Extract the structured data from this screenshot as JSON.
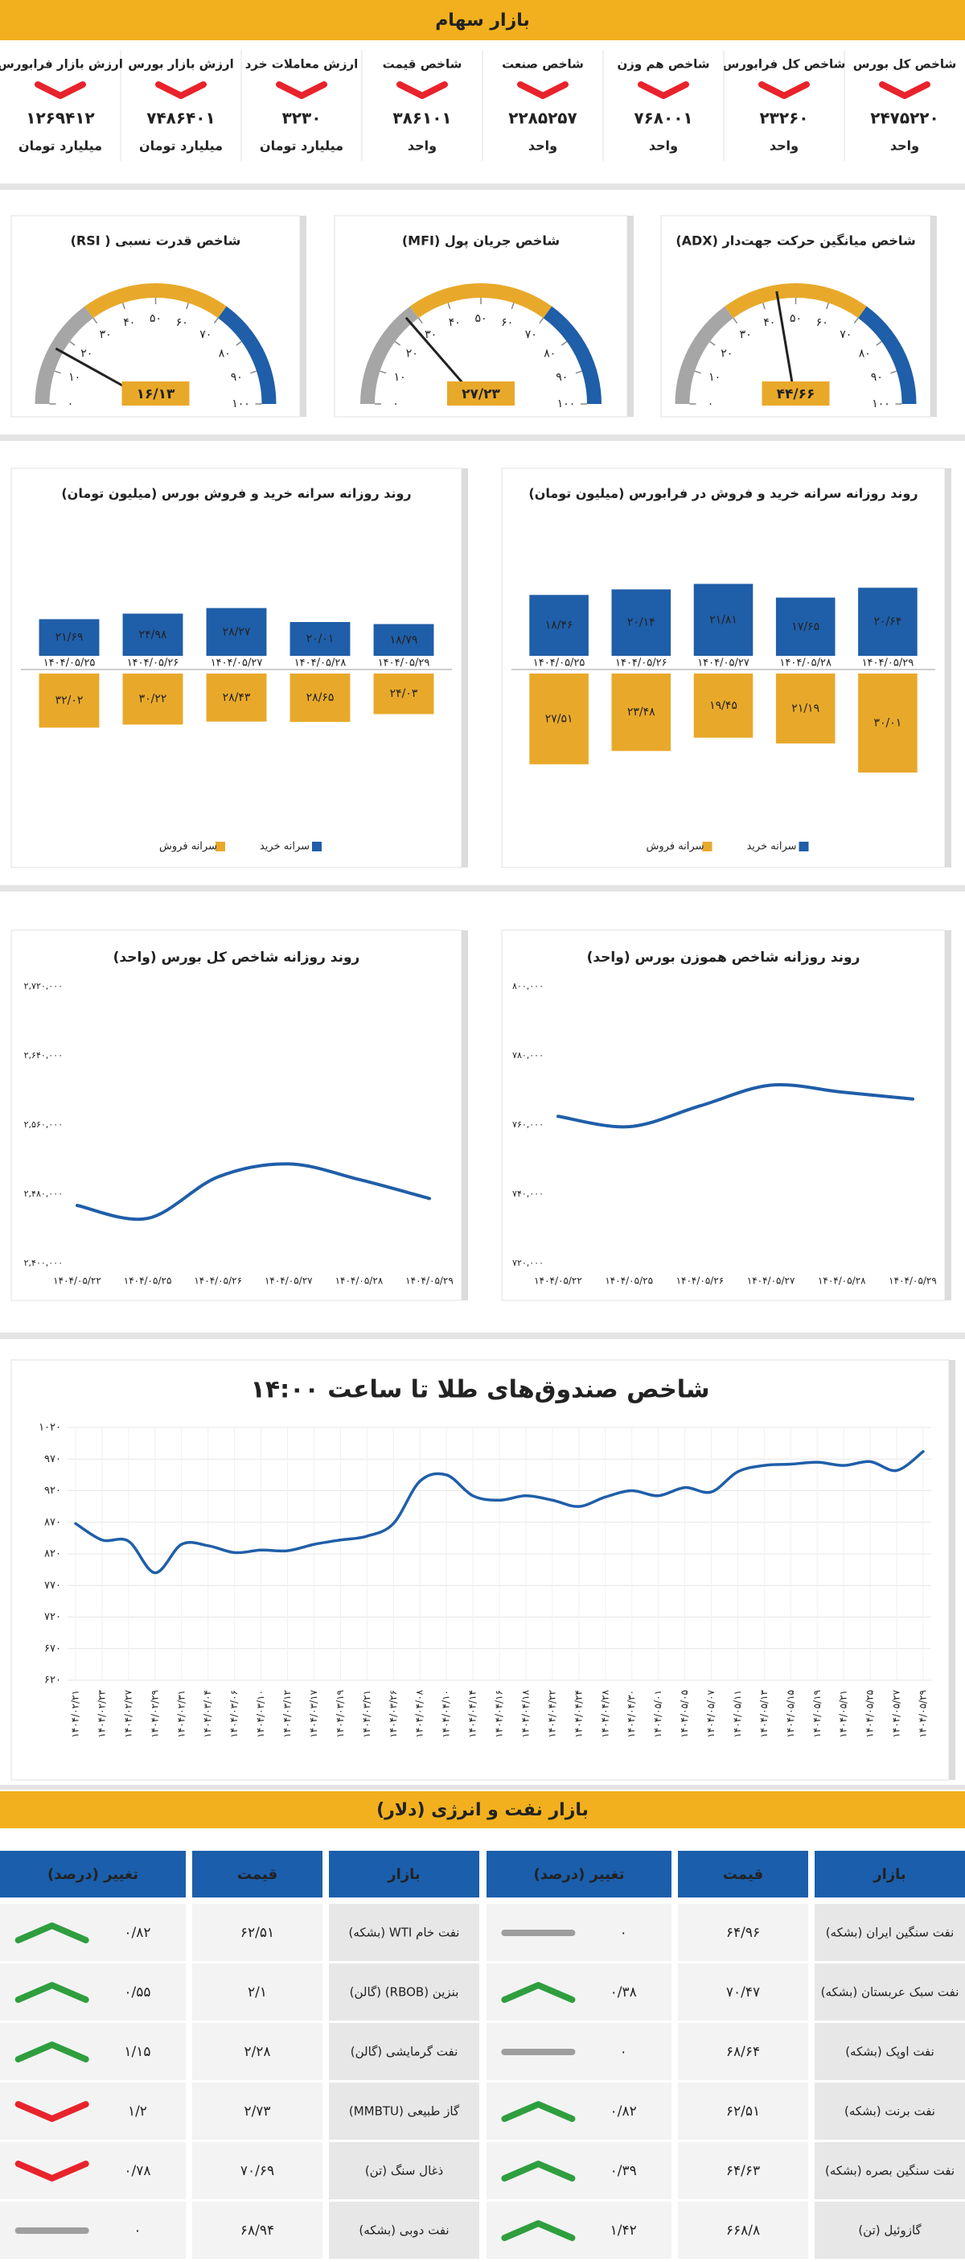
{
  "header": {
    "title": "بازار سهام"
  },
  "trend_colors": {
    "up": "#2e9e3e",
    "down": "#e8232b",
    "flat": "#9e9e9e"
  },
  "indicators": [
    {
      "label": "شاخص کل بورس",
      "value": "۲۴۷۵۲۲۰",
      "unit": "واحد",
      "direction": "down"
    },
    {
      "label": "شاخص کل فرابورس",
      "value": "۲۳۲۶۰",
      "unit": "واحد",
      "direction": "down"
    },
    {
      "label": "شاخص هم وزن",
      "value": "۷۶۸۰۰۱",
      "unit": "واحد",
      "direction": "down"
    },
    {
      "label": "شاخص صنعت",
      "value": "۲۲۸۵۲۵۷",
      "unit": "واحد",
      "direction": "down"
    },
    {
      "label": "شاخص قیمت",
      "value": "۳۸۶۱۰۱",
      "unit": "واحد",
      "direction": "down"
    },
    {
      "label": "ارزش معاملات خرد",
      "value": "۳۲۳۰",
      "unit": "میلیارد تومان",
      "direction": "down"
    },
    {
      "label": "ارزش بازار بورس",
      "value": "۷۴۸۶۴۰۱",
      "unit": "میلیارد تومان",
      "direction": "down"
    },
    {
      "label": "ارزش بازار فرابورس",
      "value": "۱۲۶۹۴۱۲",
      "unit": "میلیارد تومان",
      "direction": "down"
    }
  ],
  "chart_data": [
    {
      "type": "gauge",
      "title": "شاخص میانگین حرکت جهت‌دار (ADX)",
      "values": [
        44.66
      ],
      "value_labels": [
        "۴۴/۶۶"
      ],
      "ylim": [
        0,
        100
      ],
      "yticks": [
        {
          "value": 0,
          "label": "۰"
        },
        {
          "value": 10,
          "label": "۱۰"
        },
        {
          "value": 20,
          "label": "۲۰"
        },
        {
          "value": 30,
          "label": "۳۰"
        },
        {
          "value": 40,
          "label": "۴۰"
        },
        {
          "value": 50,
          "label": "۵۰"
        },
        {
          "value": 60,
          "label": "۶۰"
        },
        {
          "value": 70,
          "label": "۷۰"
        },
        {
          "value": 80,
          "label": "۸۰"
        },
        {
          "value": 90,
          "label": "۹۰"
        },
        {
          "value": 100,
          "label": "۱۰۰"
        }
      ],
      "bands": [
        {
          "from": 0,
          "to": 30,
          "color": "#a6a6a6"
        },
        {
          "from": 30,
          "to": 70,
          "color": "#e8a92a"
        },
        {
          "from": 70,
          "to": 100,
          "color": "#1f5ea8"
        }
      ],
      "color": "#222222"
    },
    {
      "type": "gauge",
      "title": "شاخص جریان پول (MFI)",
      "values": [
        27.23
      ],
      "value_labels": [
        "۲۷/۲۳"
      ],
      "ylim": [
        0,
        100
      ],
      "yticks": [
        {
          "value": 0,
          "label": "۰"
        },
        {
          "value": 10,
          "label": "۱۰"
        },
        {
          "value": 20,
          "label": "۲۰"
        },
        {
          "value": 30,
          "label": "۳۰"
        },
        {
          "value": 40,
          "label": "۴۰"
        },
        {
          "value": 50,
          "label": "۵۰"
        },
        {
          "value": 60,
          "label": "۶۰"
        },
        {
          "value": 70,
          "label": "۷۰"
        },
        {
          "value": 80,
          "label": "۸۰"
        },
        {
          "value": 90,
          "label": "۹۰"
        },
        {
          "value": 100,
          "label": "۱۰۰"
        }
      ],
      "bands": [
        {
          "from": 0,
          "to": 30,
          "color": "#a6a6a6"
        },
        {
          "from": 30,
          "to": 70,
          "color": "#e8a92a"
        },
        {
          "from": 70,
          "to": 100,
          "color": "#1f5ea8"
        }
      ],
      "color": "#222222"
    },
    {
      "type": "gauge",
      "title": "شاخص قدرت نسبی ( RSI)",
      "values": [
        16.13
      ],
      "value_labels": [
        "۱۶/۱۳"
      ],
      "ylim": [
        0,
        100
      ],
      "yticks": [
        {
          "value": 0,
          "label": "۰"
        },
        {
          "value": 10,
          "label": "۱۰"
        },
        {
          "value": 20,
          "label": "۲۰"
        },
        {
          "value": 30,
          "label": "۳۰"
        },
        {
          "value": 40,
          "label": "۴۰"
        },
        {
          "value": 50,
          "label": "۵۰"
        },
        {
          "value": 60,
          "label": "۶۰"
        },
        {
          "value": 70,
          "label": "۷۰"
        },
        {
          "value": 80,
          "label": "۸۰"
        },
        {
          "value": 90,
          "label": "۹۰"
        },
        {
          "value": 100,
          "label": "۱۰۰"
        }
      ],
      "bands": [
        {
          "from": 0,
          "to": 30,
          "color": "#a6a6a6"
        },
        {
          "from": 30,
          "to": 70,
          "color": "#e8a92a"
        },
        {
          "from": 70,
          "to": 100,
          "color": "#1f5ea8"
        }
      ],
      "color": "#222222"
    },
    {
      "type": "diverging_bar",
      "title": "روند روزانه سرانه خرید و فروش بورس (میلیون تومان)",
      "categories": [
        "۱۴۰۴/۰۵/۲۵",
        "۱۴۰۴/۰۵/۲۶",
        "۱۴۰۴/۰۵/۲۷",
        "۱۴۰۴/۰۵/۲۸",
        "۱۴۰۴/۰۵/۲۹"
      ],
      "series": [
        {
          "name": "سرانه خرید",
          "color": "#1f5ea8",
          "values": [
            21.69,
            24.98,
            28.27,
            20.01,
            18.79
          ],
          "value_labels": [
            "۲۱/۶۹",
            "۲۴/۹۸",
            "۲۸/۲۷",
            "۲۰/۰۱",
            "۱۸/۷۹"
          ]
        },
        {
          "name": "سرانه فروش",
          "color": "#e8a92a",
          "values": [
            32.02,
            30.22,
            28.43,
            28.65,
            24.03
          ],
          "value_labels": [
            "۳۲/۰۲",
            "۳۰/۲۲",
            "۲۸/۴۳",
            "۲۸/۶۵",
            "۲۴/۰۳"
          ]
        }
      ]
    },
    {
      "type": "diverging_bar",
      "title": "روند روزانه سرانه خرید و فروش در فرابورس (میلیون تومان)",
      "categories": [
        "۱۴۰۴/۰۵/۲۵",
        "۱۴۰۴/۰۵/۲۶",
        "۱۴۰۴/۰۵/۲۷",
        "۱۴۰۴/۰۵/۲۸",
        "۱۴۰۴/۰۵/۲۹"
      ],
      "series": [
        {
          "name": "سرانه خرید",
          "color": "#1f5ea8",
          "values": [
            18.46,
            20.14,
            21.81,
            17.65,
            20.64
          ],
          "value_labels": [
            "۱۸/۴۶",
            "۲۰/۱۴",
            "۲۱/۸۱",
            "۱۷/۶۵",
            "۲۰/۶۴"
          ]
        },
        {
          "name": "سرانه فروش",
          "color": "#e8a92a",
          "values": [
            27.51,
            23.48,
            19.45,
            21.19,
            30.01
          ],
          "value_labels": [
            "۲۷/۵۱",
            "۲۳/۴۸",
            "۱۹/۴۵",
            "۲۱/۱۹",
            "۳۰/۰۱"
          ]
        }
      ]
    },
    {
      "type": "line",
      "title": "روند روزانه شاخص کل بورس (واحد)",
      "categories": [
        "۱۴۰۴/۰۵/۲۲",
        "۱۴۰۴/۰۵/۲۵",
        "۱۴۰۴/۰۵/۲۶",
        "۱۴۰۴/۰۵/۲۷",
        "۱۴۰۴/۰۵/۲۸",
        "۱۴۰۴/۰۵/۲۹"
      ],
      "values": [
        2467000,
        2452000,
        2500000,
        2515000,
        2497000,
        2475000
      ],
      "color": "#1f5ea8",
      "ylim": [
        2400000,
        2720000
      ],
      "yticks": [
        {
          "value": 2400000,
          "label": "۲,۴۰۰,۰۰۰"
        },
        {
          "value": 2480000,
          "label": "۲,۴۸۰,۰۰۰"
        },
        {
          "value": 2560000,
          "label": "۲,۵۶۰,۰۰۰"
        },
        {
          "value": 2640000,
          "label": "۲,۶۴۰,۰۰۰"
        },
        {
          "value": 2720000,
          "label": "۲,۷۲۰,۰۰۰"
        }
      ],
      "grid": false
    },
    {
      "type": "line",
      "title": "روند روزانه شاخص هموزن بورس (واحد)",
      "categories": [
        "۱۴۰۴/۰۵/۲۲",
        "۱۴۰۴/۰۵/۲۵",
        "۱۴۰۴/۰۵/۲۶",
        "۱۴۰۴/۰۵/۲۷",
        "۱۴۰۴/۰۵/۲۸",
        "۱۴۰۴/۰۵/۲۹"
      ],
      "values": [
        762500,
        759500,
        765500,
        771500,
        769500,
        767500
      ],
      "color": "#1f5ea8",
      "ylim": [
        720000,
        800000
      ],
      "yticks": [
        {
          "value": 720000,
          "label": "۷۲۰,۰۰۰"
        },
        {
          "value": 740000,
          "label": "۷۴۰,۰۰۰"
        },
        {
          "value": 760000,
          "label": "۷۶۰,۰۰۰"
        },
        {
          "value": 780000,
          "label": "۷۸۰,۰۰۰"
        },
        {
          "value": 800000,
          "label": "۸۰۰,۰۰۰"
        }
      ],
      "grid": false
    },
    {
      "type": "line",
      "title": "شاخص صندوق‌های طلا تا ساعت ۱۴:۰۰",
      "categories": [
        "۱۴۰۴/۰۲/۲۱",
        "۱۴۰۴/۰۲/۲۳",
        "۱۴۰۴/۰۲/۲۷",
        "۱۴۰۴/۰۲/۲۹",
        "۱۴۰۴/۰۲/۳۱",
        "۱۴۰۴/۰۳/۰۴",
        "۱۴۰۴/۰۳/۰۶",
        "۱۴۰۴/۰۳/۱۰",
        "۱۴۰۴/۰۳/۱۲",
        "۱۴۰۴/۰۳/۱۷",
        "۱۴۰۴/۰۳/۱۹",
        "۱۴۰۴/۰۳/۲۱",
        "۱۴۰۴/۰۳/۲۶",
        "۱۴۰۴/۰۴/۰۸",
        "۱۴۰۴/۰۴/۱۰",
        "۱۴۰۴/۰۴/۱۴",
        "۱۴۰۴/۰۴/۱۶",
        "۱۴۰۴/۰۴/۱۸",
        "۱۴۰۴/۰۴/۲۲",
        "۱۴۰۴/۰۴/۲۴",
        "۱۴۰۴/۰۴/۲۸",
        "۱۴۰۴/۰۴/۳۰",
        "۱۴۰۴/۰۵/۰۱",
        "۱۴۰۴/۰۵/۰۵",
        "۱۴۰۴/۰۵/۰۷",
        "۱۴۰۴/۰۵/۱۱",
        "۱۴۰۴/۰۵/۱۳",
        "۱۴۰۴/۰۵/۱۵",
        "۱۴۰۴/۰۵/۱۹",
        "۱۴۰۴/۰۵/۲۱",
        "۱۴۰۴/۰۵/۲۵",
        "۱۴۰۴/۰۵/۲۷",
        "۱۴۰۴/۰۵/۲۹"
      ],
      "values": [
        868,
        842,
        840,
        790,
        835,
        833,
        822,
        826,
        825,
        835,
        842,
        848,
        868,
        935,
        945,
        912,
        905,
        912,
        905,
        895,
        910,
        920,
        912,
        925,
        918,
        950,
        960,
        962,
        965,
        960,
        966,
        952,
        982
      ],
      "color": "#1f5ea8",
      "ylim": [
        620,
        1020
      ],
      "yticks": [
        {
          "value": 620,
          "label": "۶۲۰"
        },
        {
          "value": 670,
          "label": "۶۷۰"
        },
        {
          "value": 720,
          "label": "۷۲۰"
        },
        {
          "value": 770,
          "label": "۷۷۰"
        },
        {
          "value": 820,
          "label": "۸۲۰"
        },
        {
          "value": 870,
          "label": "۸۷۰"
        },
        {
          "value": 920,
          "label": "۹۲۰"
        },
        {
          "value": 970,
          "label": "۹۷۰"
        },
        {
          "value": 1020,
          "label": "۱۰۲۰"
        }
      ],
      "grid": true
    }
  ],
  "energy": {
    "title": "بازار نفت و انرژی (دلار)",
    "tables": [
      {
        "columns": [
          "بازار",
          "قیمت",
          "تغییر (درصد)"
        ],
        "rows": [
          {
            "market": "نفت سنگین ایران (بشکه)",
            "price": "۶۴/۹۶",
            "change": "۰",
            "direction": "flat"
          },
          {
            "market": "نفت سبک عربستان (بشکه)",
            "price": "۷۰/۴۷",
            "change": "۰/۳۸",
            "direction": "up"
          },
          {
            "market": "نفت اوپک (بشکه)",
            "price": "۶۸/۶۴",
            "change": "۰",
            "direction": "flat"
          },
          {
            "market": "نفت برنت (بشکه)",
            "price": "۶۲/۵۱",
            "change": "۰/۸۲",
            "direction": "up"
          },
          {
            "market": "نفت سنگین بصره (بشکه)",
            "price": "۶۴/۶۳",
            "change": "۰/۳۹",
            "direction": "up"
          },
          {
            "market": "گازوئیل (تن)",
            "price": "۶۶۸/۸",
            "change": "۱/۴۲",
            "direction": "up"
          }
        ]
      },
      {
        "columns": [
          "بازار",
          "قیمت",
          "تغییر (درصد)"
        ],
        "rows": [
          {
            "market": "نفت خام WTI (بشکه)",
            "price": "۶۲/۵۱",
            "change": "۰/۸۲",
            "direction": "up"
          },
          {
            "market": "بنزین (RBOB) (گالن)",
            "price": "۲/۱",
            "change": "۰/۵۵",
            "direction": "up"
          },
          {
            "market": "نفت گرمایشی (گالن)",
            "price": "۲/۲۸",
            "change": "۱/۱۵",
            "direction": "up"
          },
          {
            "market": "گاز طبیعی (MMBTU)",
            "price": "۲/۷۳",
            "change": "۱/۲",
            "direction": "down"
          },
          {
            "market": "ذغال سنگ (تن)",
            "price": "۷۰/۶۹",
            "change": "۰/۷۸",
            "direction": "down"
          },
          {
            "market": "نفت دوبی (بشکه)",
            "price": "۶۸/۹۴",
            "change": "۰",
            "direction": "flat"
          }
        ]
      }
    ]
  }
}
